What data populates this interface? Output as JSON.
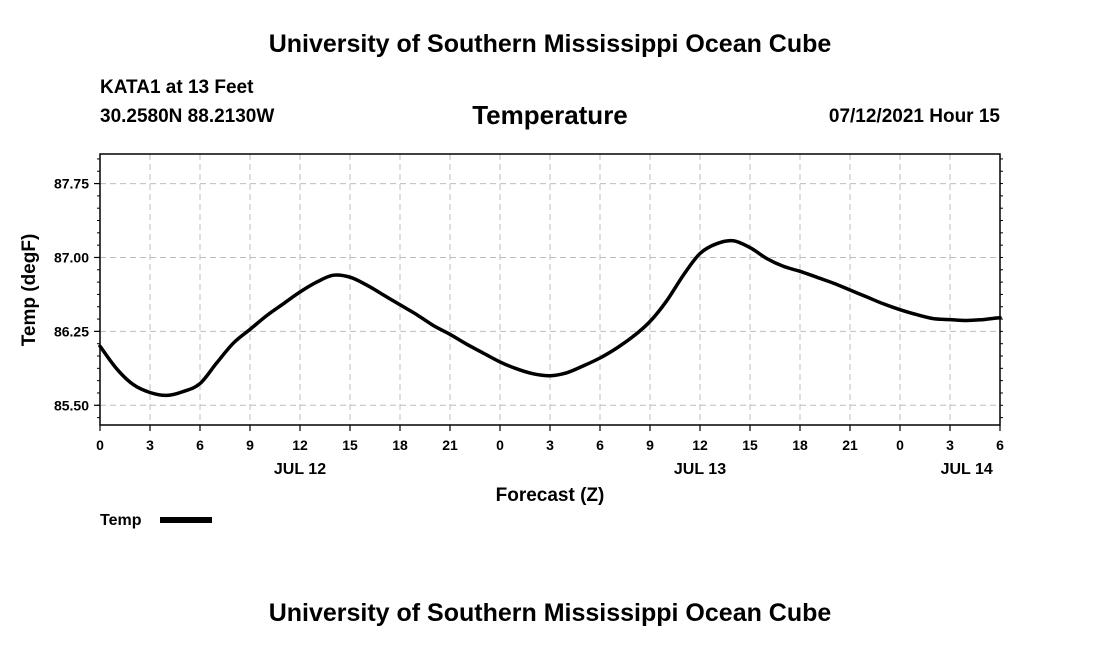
{
  "header": {
    "title": "University of Southern Mississippi Ocean Cube",
    "station": "KATA1 at 13 Feet",
    "coords": "30.2580N  88.2130W",
    "datetime": "07/12/2021 Hour 15"
  },
  "footer": {
    "title": "University of Southern Mississippi Ocean Cube"
  },
  "chart_data": {
    "type": "line",
    "title": "Temperature",
    "xlabel": "Forecast (Z)",
    "ylabel": "Temp (degF)",
    "xlim": [
      0,
      54
    ],
    "ylim": [
      85.3,
      88.05
    ],
    "x_tick_values": [
      0,
      3,
      6,
      9,
      12,
      15,
      18,
      21,
      24,
      27,
      30,
      33,
      36,
      39,
      42,
      45,
      48,
      51,
      54
    ],
    "x_tick_labels": [
      "0",
      "3",
      "6",
      "9",
      "12",
      "15",
      "18",
      "21",
      "0",
      "3",
      "6",
      "9",
      "12",
      "15",
      "18",
      "21",
      "0",
      "3",
      "6"
    ],
    "date_labels": [
      {
        "label": "JUL 12",
        "x": 12
      },
      {
        "label": "JUL 13",
        "x": 36
      },
      {
        "label": "JUL 14",
        "x": 52
      }
    ],
    "y_ticks": [
      85.5,
      86.25,
      87.0,
      87.75
    ],
    "y_tick_labels": [
      "85.50",
      "86.25",
      "87.00",
      "87.75"
    ],
    "grid": true,
    "legend": {
      "position": "bottom-left",
      "entries": [
        "Temp"
      ]
    },
    "series": [
      {
        "name": "Temp",
        "color": "#000000",
        "x": [
          0,
          1,
          2,
          3,
          4,
          5,
          6,
          7,
          8,
          9,
          10,
          11,
          12,
          13,
          14,
          15,
          16,
          17,
          18,
          19,
          20,
          21,
          22,
          23,
          24,
          25,
          26,
          27,
          28,
          29,
          30,
          31,
          32,
          33,
          34,
          35,
          36,
          37,
          38,
          39,
          40,
          41,
          42,
          43,
          44,
          45,
          46,
          47,
          48,
          49,
          50,
          51,
          52,
          53,
          54
        ],
        "values": [
          86.1,
          85.87,
          85.71,
          85.63,
          85.6,
          85.64,
          85.72,
          85.93,
          86.13,
          86.27,
          86.41,
          86.53,
          86.65,
          86.75,
          86.82,
          86.8,
          86.72,
          86.62,
          86.52,
          86.42,
          86.31,
          86.22,
          86.12,
          86.03,
          85.94,
          85.87,
          85.82,
          85.8,
          85.83,
          85.9,
          85.98,
          86.08,
          86.2,
          86.35,
          86.56,
          86.82,
          87.04,
          87.14,
          87.17,
          87.1,
          86.99,
          86.91,
          86.86,
          86.8,
          86.74,
          86.67,
          86.6,
          86.53,
          86.47,
          86.42,
          86.38,
          86.37,
          86.36,
          86.37,
          86.39
        ]
      }
    ]
  }
}
